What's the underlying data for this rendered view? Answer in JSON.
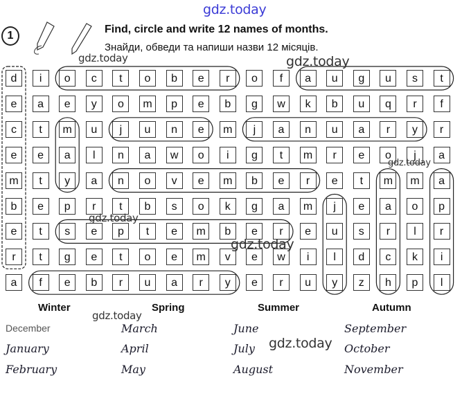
{
  "exercise": {
    "number": "1",
    "title_en": "Find, circle and write 12 names of months.",
    "title_uk": "Знайди, обведи та напиши назви 12 місяців."
  },
  "watermarks": [
    "gdz.today",
    "gdz.today",
    "gdz.today",
    "gdz.today",
    "gdz.today",
    "gdz.today",
    "gdz.today",
    "gdz.today"
  ],
  "watermark_color": "#3b3bd6",
  "grid": [
    [
      "d",
      "i",
      "o",
      "c",
      "t",
      "o",
      "b",
      "e",
      "r",
      "o",
      "f",
      "a",
      "u",
      "g",
      "u",
      "s",
      "t"
    ],
    [
      "e",
      "a",
      "e",
      "y",
      "o",
      "m",
      "p",
      "e",
      "b",
      "g",
      "w",
      "k",
      "b",
      "u",
      "q",
      "r",
      "f"
    ],
    [
      "c",
      "t",
      "m",
      "u",
      "j",
      "u",
      "n",
      "e",
      "m",
      "j",
      "a",
      "n",
      "u",
      "a",
      "r",
      "y",
      "r"
    ],
    [
      "e",
      "e",
      "a",
      "l",
      "n",
      "a",
      "w",
      "o",
      "i",
      "g",
      "t",
      "m",
      "r",
      "e",
      "o",
      "j",
      "a"
    ],
    [
      "m",
      "t",
      "y",
      "a",
      "n",
      "o",
      "v",
      "e",
      "m",
      "b",
      "e",
      "r",
      "e",
      "t",
      "m",
      "m",
      "a"
    ],
    [
      "b",
      "e",
      "p",
      "r",
      "t",
      "b",
      "s",
      "o",
      "k",
      "g",
      "a",
      "m",
      "j",
      "e",
      "a",
      "o",
      "p"
    ],
    [
      "e",
      "t",
      "s",
      "e",
      "p",
      "t",
      "e",
      "m",
      "b",
      "e",
      "r",
      "e",
      "u",
      "s",
      "r",
      "l",
      "r"
    ],
    [
      "r",
      "t",
      "g",
      "e",
      "t",
      "o",
      "e",
      "m",
      "v",
      "e",
      "w",
      "i",
      "l",
      "d",
      "c",
      "k",
      "i"
    ],
    [
      "a",
      "f",
      "e",
      "b",
      "r",
      "u",
      "a",
      "r",
      "y",
      "e",
      "r",
      "u",
      "y",
      "z",
      "h",
      "p",
      "l"
    ]
  ],
  "seasons": [
    {
      "name": "Winter",
      "months": [
        "December",
        "January",
        "February"
      ]
    },
    {
      "name": "Spring",
      "months": [
        "March",
        "April",
        "May"
      ]
    },
    {
      "name": "Summer",
      "months": [
        "June",
        "July",
        "August"
      ]
    },
    {
      "name": "Autumn",
      "months": [
        "September",
        "October",
        "November"
      ]
    }
  ]
}
